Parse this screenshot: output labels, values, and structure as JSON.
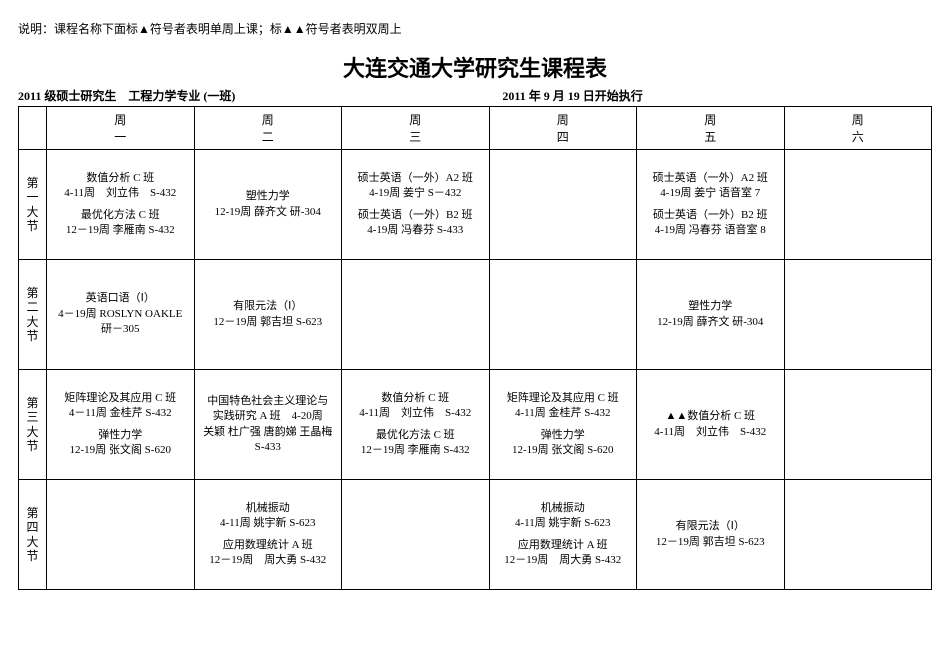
{
  "note": "说明：课程名称下面标▲符号者表明单周上课；标▲▲符号者表明双周上",
  "title": "大连交通大学研究生课程表",
  "subhead_left": "2011 级硕士研究生　工程力学专业 (一班)",
  "subhead_right": "2011 年 9 月 19 日开始执行",
  "days": [
    "周\n一",
    "周\n二",
    "周\n三",
    "周\n四",
    "周\n五",
    "周\n六"
  ],
  "periods": [
    "第一大节",
    "第二大节",
    "第三大节",
    "第四大节"
  ],
  "cells": {
    "0-0": [
      {
        "l1": "数值分析 C 班",
        "l2": "4-11周　刘立伟　S-432"
      },
      {
        "l1": "最优化方法 C 班",
        "l2": "12－19周 李雁南 S-432"
      }
    ],
    "0-1": [
      {
        "l1": "塑性力学",
        "l2": "12-19周 薛齐文 研-304"
      }
    ],
    "0-2": [
      {
        "l1": "硕士英语（一外）A2 班",
        "l2": "4-19周 姜宁 S－432"
      },
      {
        "l1": "硕士英语（一外）B2 班",
        "l2": "4-19周 冯春芬 S-433"
      }
    ],
    "0-3": [],
    "0-4": [
      {
        "l1": "硕士英语（一外）A2 班",
        "l2": "4-19周 姜宁 语音室 7"
      },
      {
        "l1": "硕士英语（一外）B2 班",
        "l2": "4-19周 冯春芬 语音室 8"
      }
    ],
    "0-5": [],
    "1-0": [
      {
        "l1": "英语口语（Ⅰ）",
        "l2": "4－19周 ROSLYN OAKLE",
        "l3": "研－305"
      }
    ],
    "1-1": [
      {
        "l1": "有限元法（Ⅰ）",
        "l2": "12－19周 郭吉坦 S-623"
      }
    ],
    "1-2": [],
    "1-3": [],
    "1-4": [
      {
        "l1": "塑性力学",
        "l2": "12-19周 薛齐文 研-304"
      }
    ],
    "1-5": [],
    "2-0": [
      {
        "l1": "矩阵理论及其应用 C 班",
        "l2": "4－11周 金桂芹 S-432"
      },
      {
        "l1": "弹性力学",
        "l2": "12-19周 张文阁 S-620"
      }
    ],
    "2-1": [
      {
        "l1": "中国特色社会主义理论与",
        "l2": "实践研究 A 班　4-20周",
        "l3": "关颖 杜广强 唐韵娣 王晶梅",
        "l4": "S-433"
      }
    ],
    "2-2": [
      {
        "l1": "数值分析 C 班",
        "l2": "4-11周　刘立伟　S-432"
      },
      {
        "l1": "最优化方法 C 班",
        "l2": "12－19周 李雁南 S-432"
      }
    ],
    "2-3": [
      {
        "l1": "矩阵理论及其应用 C 班",
        "l2": "4-11周 金桂芹 S-432"
      },
      {
        "l1": "弹性力学",
        "l2": "12-19周 张文阁 S-620"
      }
    ],
    "2-4": [
      {
        "l1": "▲▲数值分析 C 班",
        "l2": "4-11周　刘立伟　S-432"
      }
    ],
    "2-5": [],
    "3-0": [],
    "3-1": [
      {
        "l1": "机械振动",
        "l2": "4-11周 姚宇新 S-623"
      },
      {
        "l1": "应用数理统计 A 班",
        "l2": "12－19周　周大勇 S-432"
      }
    ],
    "3-2": [],
    "3-3": [
      {
        "l1": "机械振动",
        "l2": "4-11周 姚宇新 S-623"
      },
      {
        "l1": "应用数理统计 A 班",
        "l2": "12－19周　周大勇 S-432"
      }
    ],
    "3-4": [
      {
        "l1": "有限元法（Ⅰ）",
        "l2": "12－19周 郭吉坦 S-623"
      }
    ],
    "3-5": []
  }
}
